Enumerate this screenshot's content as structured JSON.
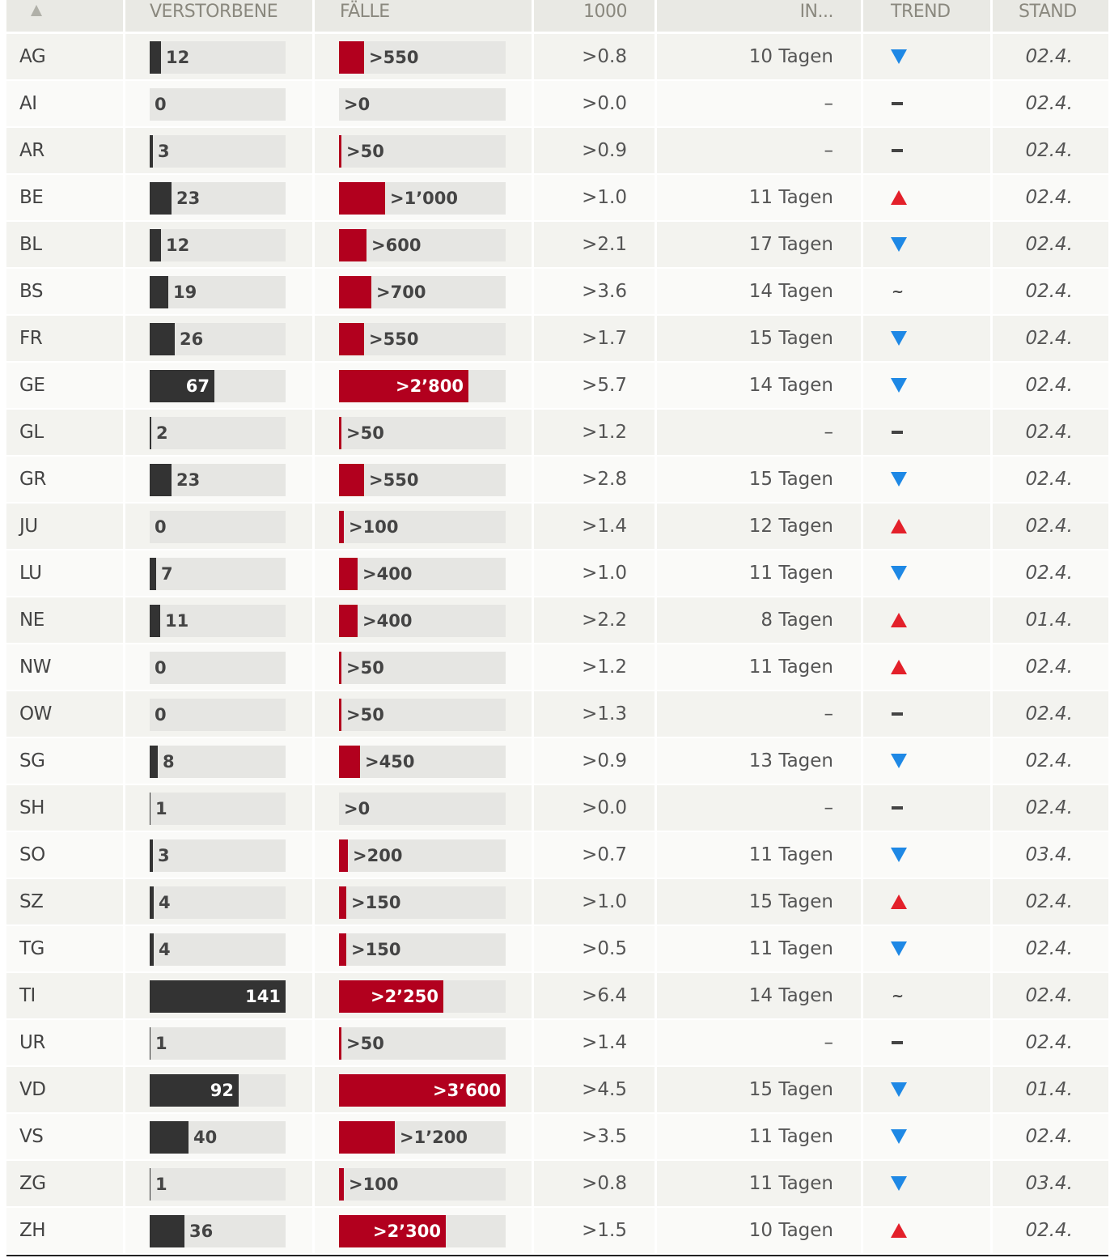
{
  "header": {
    "sort_icon": "triangle-up",
    "col_deaths": "VERSTORBENE",
    "col_cases": "FÄLLE",
    "col_per1000": "1000",
    "col_doubling": "IN...",
    "col_trend": "TREND",
    "col_date": "STAND"
  },
  "colors": {
    "deaths_bar": "#333333",
    "cases_bar": "#b2001e",
    "trend_down": "#1e88e5",
    "trend_up": "#e3202a"
  },
  "scale": {
    "deaths_max": 141,
    "cases_max": 3600
  },
  "rows": [
    {
      "canton": "AG",
      "deaths": 12,
      "deaths_label": "12",
      "cases": 550,
      "cases_label": ">550",
      "per1000": ">0.8",
      "doubling": "10 Tagen",
      "trend": "down",
      "date": "02.4."
    },
    {
      "canton": "AI",
      "deaths": 0,
      "deaths_label": "0",
      "cases": 0,
      "cases_label": ">0",
      "per1000": ">0.0",
      "doubling": "–",
      "trend": "flat",
      "date": "02.4."
    },
    {
      "canton": "AR",
      "deaths": 3,
      "deaths_label": "3",
      "cases": 50,
      "cases_label": ">50",
      "per1000": ">0.9",
      "doubling": "–",
      "trend": "flat",
      "date": "02.4."
    },
    {
      "canton": "BE",
      "deaths": 23,
      "deaths_label": "23",
      "cases": 1000,
      "cases_label": ">1’000",
      "per1000": ">1.0",
      "doubling": "11 Tagen",
      "trend": "up",
      "date": "02.4."
    },
    {
      "canton": "BL",
      "deaths": 12,
      "deaths_label": "12",
      "cases": 600,
      "cases_label": ">600",
      "per1000": ">2.1",
      "doubling": "17 Tagen",
      "trend": "down",
      "date": "02.4."
    },
    {
      "canton": "BS",
      "deaths": 19,
      "deaths_label": "19",
      "cases": 700,
      "cases_label": ">700",
      "per1000": ">3.6",
      "doubling": "14 Tagen",
      "trend": "stable",
      "date": "02.4."
    },
    {
      "canton": "FR",
      "deaths": 26,
      "deaths_label": "26",
      "cases": 550,
      "cases_label": ">550",
      "per1000": ">1.7",
      "doubling": "15 Tagen",
      "trend": "down",
      "date": "02.4."
    },
    {
      "canton": "GE",
      "deaths": 67,
      "deaths_label": "67",
      "cases": 2800,
      "cases_label": ">2’800",
      "per1000": ">5.7",
      "doubling": "14 Tagen",
      "trend": "down",
      "date": "02.4."
    },
    {
      "canton": "GL",
      "deaths": 2,
      "deaths_label": "2",
      "cases": 50,
      "cases_label": ">50",
      "per1000": ">1.2",
      "doubling": "–",
      "trend": "flat",
      "date": "02.4."
    },
    {
      "canton": "GR",
      "deaths": 23,
      "deaths_label": "23",
      "cases": 550,
      "cases_label": ">550",
      "per1000": ">2.8",
      "doubling": "15 Tagen",
      "trend": "down",
      "date": "02.4."
    },
    {
      "canton": "JU",
      "deaths": 0,
      "deaths_label": "0",
      "cases": 100,
      "cases_label": ">100",
      "per1000": ">1.4",
      "doubling": "12 Tagen",
      "trend": "up",
      "date": "02.4."
    },
    {
      "canton": "LU",
      "deaths": 7,
      "deaths_label": "7",
      "cases": 400,
      "cases_label": ">400",
      "per1000": ">1.0",
      "doubling": "11 Tagen",
      "trend": "down",
      "date": "02.4."
    },
    {
      "canton": "NE",
      "deaths": 11,
      "deaths_label": "11",
      "cases": 400,
      "cases_label": ">400",
      "per1000": ">2.2",
      "doubling": "8 Tagen",
      "trend": "up",
      "date": "01.4."
    },
    {
      "canton": "NW",
      "deaths": 0,
      "deaths_label": "0",
      "cases": 50,
      "cases_label": ">50",
      "per1000": ">1.2",
      "doubling": "11 Tagen",
      "trend": "up",
      "date": "02.4."
    },
    {
      "canton": "OW",
      "deaths": 0,
      "deaths_label": "0",
      "cases": 50,
      "cases_label": ">50",
      "per1000": ">1.3",
      "doubling": "–",
      "trend": "flat",
      "date": "02.4."
    },
    {
      "canton": "SG",
      "deaths": 8,
      "deaths_label": "8",
      "cases": 450,
      "cases_label": ">450",
      "per1000": ">0.9",
      "doubling": "13 Tagen",
      "trend": "down",
      "date": "02.4."
    },
    {
      "canton": "SH",
      "deaths": 1,
      "deaths_label": "1",
      "cases": 0,
      "cases_label": ">0",
      "per1000": ">0.0",
      "doubling": "–",
      "trend": "flat",
      "date": "02.4."
    },
    {
      "canton": "SO",
      "deaths": 3,
      "deaths_label": "3",
      "cases": 200,
      "cases_label": ">200",
      "per1000": ">0.7",
      "doubling": "11 Tagen",
      "trend": "down",
      "date": "03.4."
    },
    {
      "canton": "SZ",
      "deaths": 4,
      "deaths_label": "4",
      "cases": 150,
      "cases_label": ">150",
      "per1000": ">1.0",
      "doubling": "15 Tagen",
      "trend": "up",
      "date": "02.4."
    },
    {
      "canton": "TG",
      "deaths": 4,
      "deaths_label": "4",
      "cases": 150,
      "cases_label": ">150",
      "per1000": ">0.5",
      "doubling": "11 Tagen",
      "trend": "down",
      "date": "02.4."
    },
    {
      "canton": "TI",
      "deaths": 141,
      "deaths_label": "141",
      "cases": 2250,
      "cases_label": ">2’250",
      "per1000": ">6.4",
      "doubling": "14 Tagen",
      "trend": "stable",
      "date": "02.4."
    },
    {
      "canton": "UR",
      "deaths": 1,
      "deaths_label": "1",
      "cases": 50,
      "cases_label": ">50",
      "per1000": ">1.4",
      "doubling": "–",
      "trend": "flat",
      "date": "02.4."
    },
    {
      "canton": "VD",
      "deaths": 92,
      "deaths_label": "92",
      "cases": 3600,
      "cases_label": ">3’600",
      "per1000": ">4.5",
      "doubling": "15 Tagen",
      "trend": "down",
      "date": "01.4."
    },
    {
      "canton": "VS",
      "deaths": 40,
      "deaths_label": "40",
      "cases": 1200,
      "cases_label": ">1’200",
      "per1000": ">3.5",
      "doubling": "11 Tagen",
      "trend": "down",
      "date": "02.4."
    },
    {
      "canton": "ZG",
      "deaths": 1,
      "deaths_label": "1",
      "cases": 100,
      "cases_label": ">100",
      "per1000": ">0.8",
      "doubling": "11 Tagen",
      "trend": "down",
      "date": "03.4."
    },
    {
      "canton": "ZH",
      "deaths": 36,
      "deaths_label": "36",
      "cases": 2300,
      "cases_label": ">2’300",
      "per1000": ">1.5",
      "doubling": "10 Tagen",
      "trend": "up",
      "date": "02.4."
    }
  ]
}
